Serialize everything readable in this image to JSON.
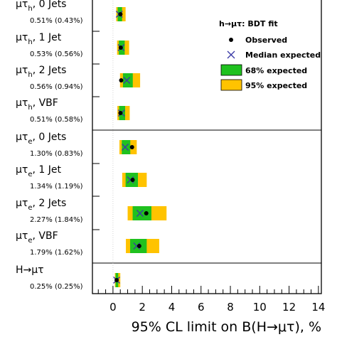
{
  "chart_data": {
    "type": "scatter",
    "xlabel": "95% CL limit on B(H→μτ), %",
    "xlim": [
      -1.4,
      14.2
    ],
    "xticks": [
      0,
      2,
      4,
      6,
      8,
      10,
      12,
      14
    ],
    "legend": {
      "position": "top-right",
      "title": "h→μτ: BDT fit",
      "observed": "Observed",
      "median": "Median expected",
      "band68": "68% expected",
      "band95": "95% expected"
    },
    "colors": {
      "band68": "#1fc11f",
      "band95": "#ffc300",
      "observed": "#000000",
      "median": "#3a3aa6"
    },
    "categories": [
      {
        "main": "μτ",
        "sub": "h",
        "suffix": ", 0 Jets",
        "limits": "0.51% (0.43%)",
        "observed": 0.51,
        "expected": 0.43,
        "band68": [
          0.32,
          0.62
        ],
        "band95": [
          0.22,
          0.86
        ]
      },
      {
        "main": "μτ",
        "sub": "h",
        "suffix": ", 1 Jet",
        "limits": "0.53% (0.56%)",
        "observed": 0.53,
        "expected": 0.56,
        "band68": [
          0.4,
          0.8
        ],
        "band95": [
          0.28,
          1.1
        ]
      },
      {
        "main": "μτ",
        "sub": "h",
        "suffix": ", 2 Jets",
        "limits": "0.56% (0.94%)",
        "observed": 0.56,
        "expected": 0.94,
        "band68": [
          0.68,
          1.35
        ],
        "band95": [
          0.48,
          1.85
        ]
      },
      {
        "main": "μτ",
        "sub": "h",
        "suffix": ", VBF",
        "limits": "0.51% (0.58%)",
        "observed": 0.51,
        "expected": 0.58,
        "band68": [
          0.42,
          0.83
        ],
        "band95": [
          0.3,
          1.14
        ]
      },
      {
        "main": "μτ",
        "sub": "e",
        "suffix": ", 0 Jets",
        "limits": "1.30% (0.83%)",
        "observed": 1.3,
        "expected": 0.83,
        "band68": [
          0.6,
          1.18
        ],
        "band95": [
          0.44,
          1.62
        ]
      },
      {
        "main": "μτ",
        "sub": "e",
        "suffix": ", 1 Jet",
        "limits": "1.34% (1.19%)",
        "observed": 1.34,
        "expected": 1.19,
        "band68": [
          0.86,
          1.7
        ],
        "band95": [
          0.63,
          2.3
        ]
      },
      {
        "main": "μτ",
        "sub": "e",
        "suffix": ", 2 Jets",
        "limits": "2.27% (1.84%)",
        "observed": 2.27,
        "expected": 1.84,
        "band68": [
          1.34,
          2.62
        ],
        "band95": [
          1.0,
          3.65
        ]
      },
      {
        "main": "μτ",
        "sub": "e",
        "suffix": ", VBF",
        "limits": "1.79% (1.62%)",
        "observed": 1.79,
        "expected": 1.62,
        "band68": [
          1.17,
          2.3
        ],
        "band95": [
          0.88,
          3.15
        ]
      },
      {
        "main": "H→μτ",
        "sub": "",
        "suffix": "",
        "limits": "0.25% (0.25%)",
        "observed": 0.25,
        "expected": 0.25,
        "band68": [
          0.18,
          0.36
        ],
        "band95": [
          0.13,
          0.5
        ]
      }
    ]
  }
}
